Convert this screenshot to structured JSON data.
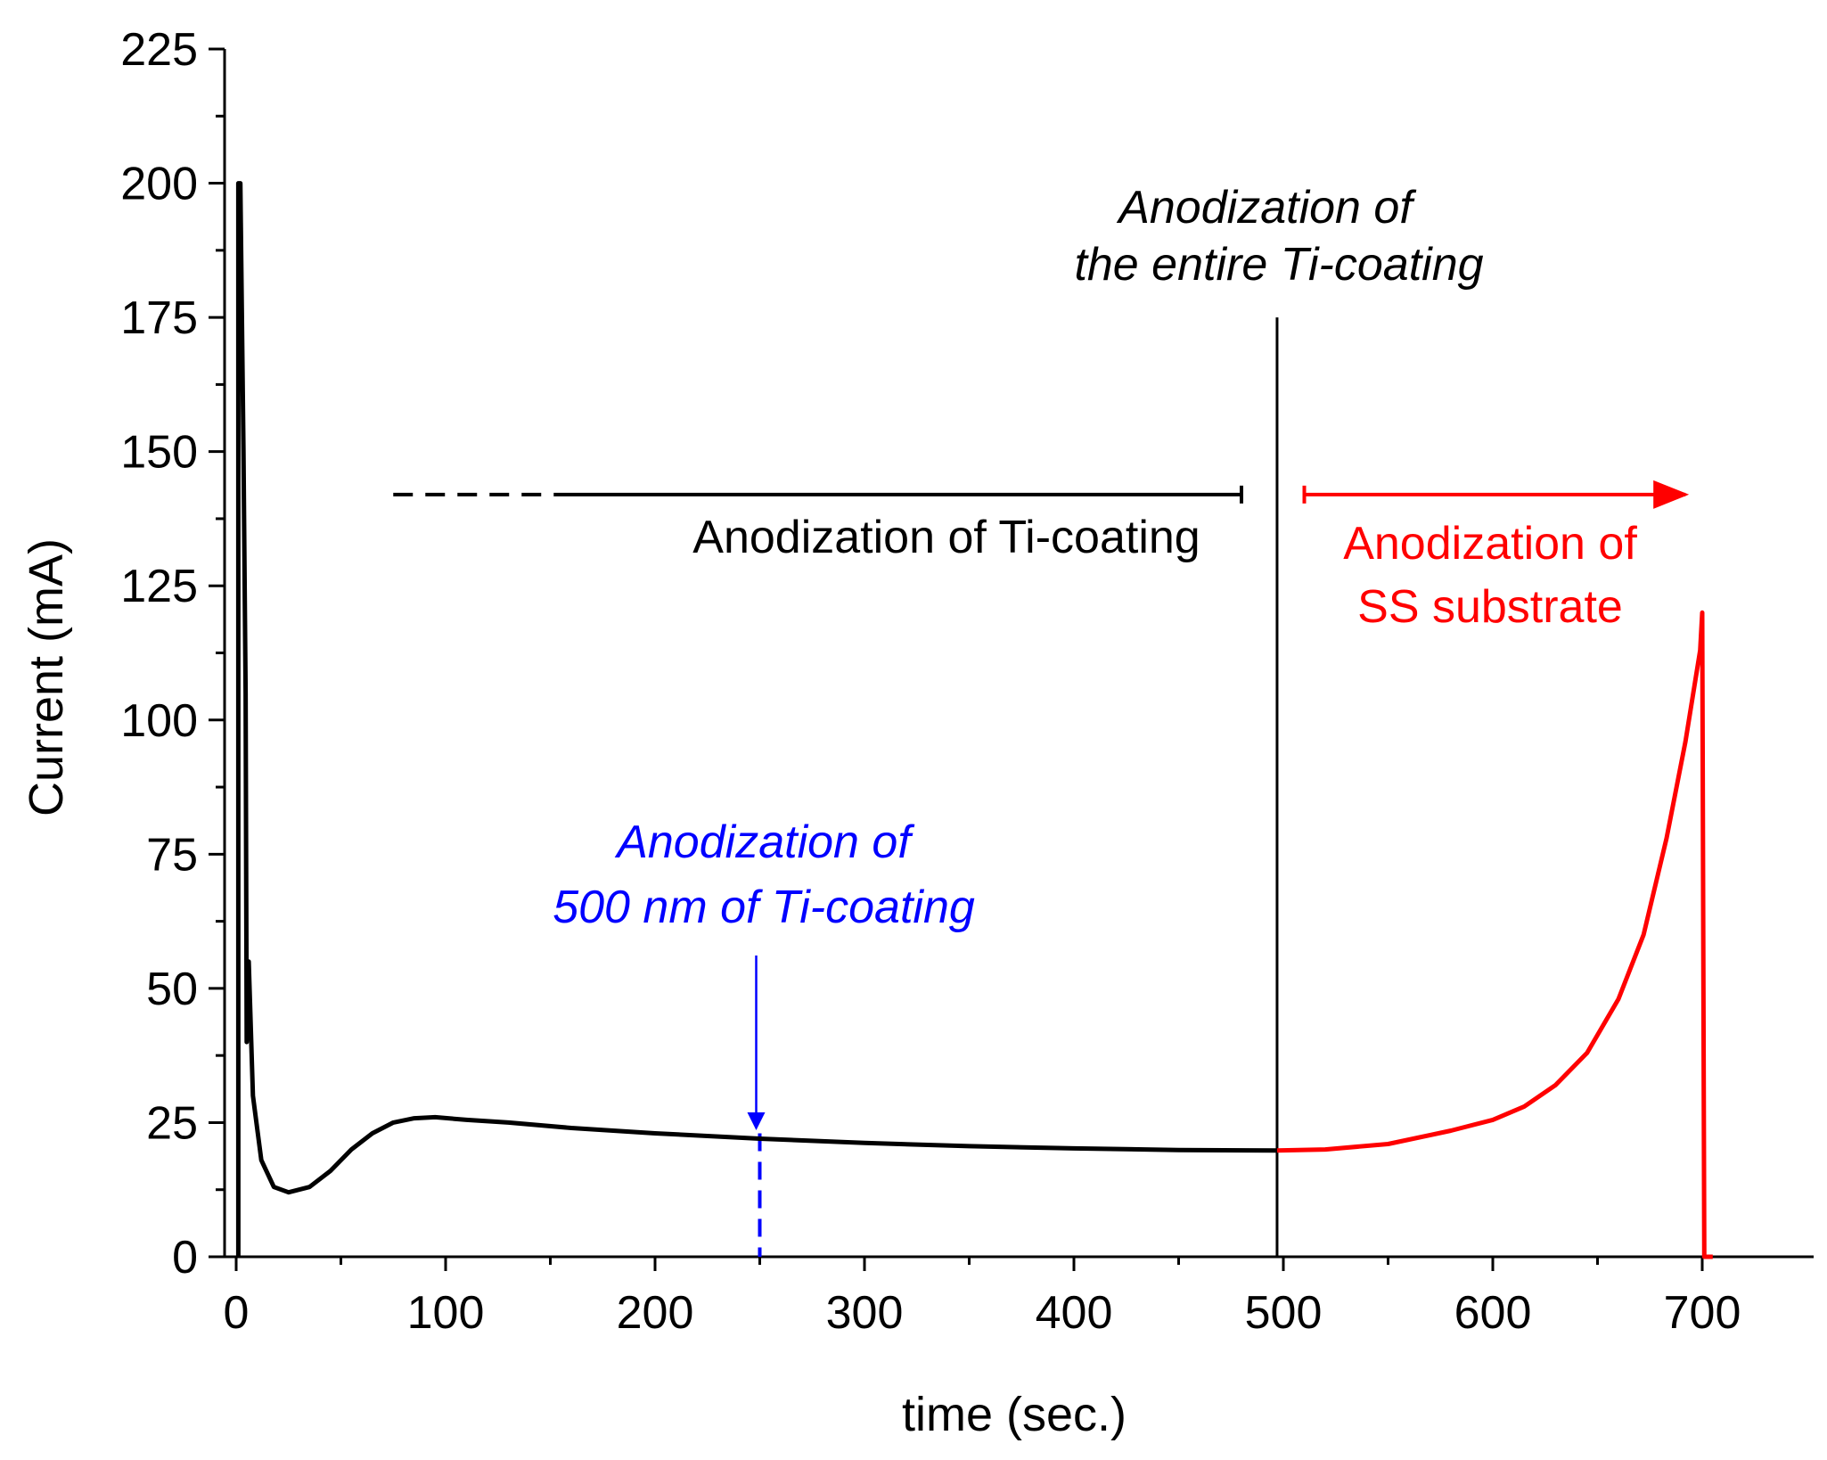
{
  "chart_data": {
    "type": "line",
    "title": "",
    "xlabel": "time (sec.)",
    "ylabel": "Current (mA)",
    "xlim": [
      0,
      750
    ],
    "ylim": [
      0,
      225
    ],
    "x_ticks": [
      0,
      100,
      200,
      300,
      400,
      500,
      600,
      700
    ],
    "y_ticks": [
      0,
      25,
      50,
      75,
      100,
      125,
      150,
      175,
      200,
      225
    ],
    "grid": false,
    "series": [
      {
        "name": "Anodization of Ti-coating",
        "color": "#000000",
        "points": [
          [
            1,
            0
          ],
          [
            1,
            200
          ],
          [
            2,
            200
          ],
          [
            3.5,
            150
          ],
          [
            4.5,
            105
          ],
          [
            5,
            40
          ],
          [
            6,
            55
          ],
          [
            8,
            30
          ],
          [
            12,
            18
          ],
          [
            18,
            13
          ],
          [
            25,
            12
          ],
          [
            35,
            13
          ],
          [
            45,
            16
          ],
          [
            55,
            20
          ],
          [
            65,
            23
          ],
          [
            75,
            25
          ],
          [
            85,
            25.8
          ],
          [
            95,
            26
          ],
          [
            110,
            25.5
          ],
          [
            130,
            25
          ],
          [
            160,
            24
          ],
          [
            200,
            23
          ],
          [
            250,
            22
          ],
          [
            300,
            21.2
          ],
          [
            350,
            20.6
          ],
          [
            400,
            20.2
          ],
          [
            450,
            19.9
          ],
          [
            497,
            19.8
          ]
        ]
      },
      {
        "name": "Anodization of SS substrate",
        "color": "#ff0000",
        "points": [
          [
            497,
            19.8
          ],
          [
            520,
            20
          ],
          [
            550,
            21
          ],
          [
            580,
            23.5
          ],
          [
            600,
            25.5
          ],
          [
            615,
            28
          ],
          [
            630,
            32
          ],
          [
            645,
            38
          ],
          [
            660,
            48
          ],
          [
            672,
            60
          ],
          [
            683,
            78
          ],
          [
            692,
            96
          ],
          [
            699,
            113
          ],
          [
            700,
            120
          ],
          [
            701,
            0
          ],
          [
            705,
            0
          ]
        ]
      }
    ],
    "markers": {
      "blue_dashed_x": 250,
      "blue_arrow_tip_y": 23,
      "vertical_line_x": 497,
      "vertical_line_top": 175,
      "black_range": {
        "dashed_from": 75,
        "dashed_to": 160,
        "solid_from": 160,
        "solid_to": 480,
        "y": 142
      },
      "red_range": {
        "from": 510,
        "to": 692,
        "y": 142
      }
    },
    "annotations": {
      "entire": [
        "Anodization of",
        "the entire Ti-coating"
      ],
      "ti_coating": "Anodization of Ti-coating",
      "ss_substrate": [
        "Anodization of",
        "SS substrate"
      ],
      "nm500": [
        "Anodization of",
        "500 nm of Ti-coating"
      ]
    },
    "colors": {
      "axis": "#000000",
      "ti": "#000000",
      "ss": "#ff0000",
      "blue": "#0000ff"
    }
  }
}
